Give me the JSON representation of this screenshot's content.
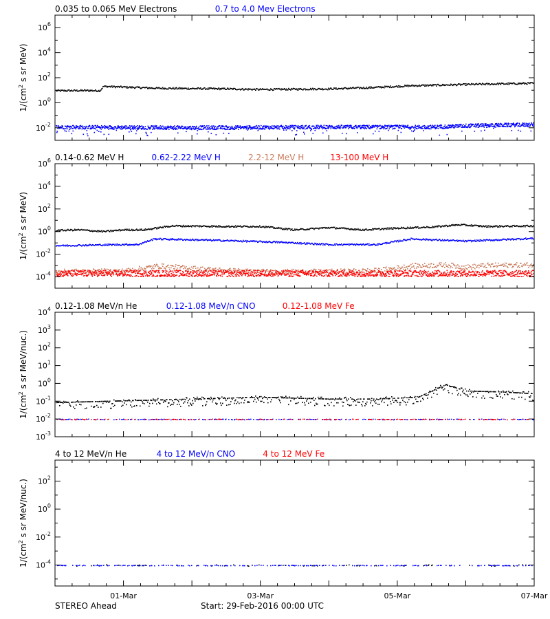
{
  "colors": {
    "black": "#000000",
    "blue": "#0000ff",
    "tan": "#c87a5a",
    "red": "#ff0000"
  },
  "chart_data": [
    {
      "type": "scatter",
      "ylog": true,
      "ylim_exp": [
        -3,
        7
      ],
      "ylabel": {
        "pre": "1/(cm",
        "sup": "2",
        "post": " s sr MeV)"
      },
      "legend": [
        {
          "name": "0.035 to 0.065 MeV Electrons",
          "color": "#000000"
        },
        {
          "name": "0.7 to 4.0 Mev Electrons",
          "color": "#0000ff"
        }
      ],
      "yticks": [
        {
          "b": "10",
          "e": "6",
          "v": 6
        },
        {
          "b": "10",
          "e": "4",
          "v": 4
        },
        {
          "b": "10",
          "e": "2",
          "v": 2
        },
        {
          "b": "10",
          "e": "0",
          "v": 0
        },
        {
          "b": "10",
          "e": "-2",
          "v": -2
        }
      ],
      "series": [
        {
          "name": "0.035 to 0.065 MeV Electrons",
          "color": "#000000",
          "scatter": 0.07,
          "density": 1,
          "x": [
            0,
            0.5,
            0.65,
            0.7,
            1.5,
            2.5,
            3.0,
            4.0,
            4.6,
            5.2,
            6.0,
            7.0
          ],
          "y": [
            1.0,
            1.02,
            1.0,
            1.35,
            1.2,
            1.15,
            1.1,
            1.15,
            1.25,
            1.4,
            1.5,
            1.6
          ]
        },
        {
          "name": "0.7 to 4.0 Mev Electrons",
          "color": "#0000ff",
          "scatter": 0.15,
          "density": 2,
          "tail": 0.6,
          "x": [
            0,
            2.0,
            4.0,
            5.5,
            6.0,
            7.0
          ],
          "y": [
            -1.9,
            -1.95,
            -1.9,
            -1.9,
            -1.8,
            -1.7
          ]
        }
      ]
    },
    {
      "type": "scatter",
      "ylog": true,
      "ylim_exp": [
        -5,
        6
      ],
      "ylabel": {
        "pre": "1/(cm",
        "sup": "2",
        "post": " s sr MeV)"
      },
      "legend": [
        {
          "name": "0.14-0.62 MeV H",
          "color": "#000000"
        },
        {
          "name": "0.62-2.22 MeV H",
          "color": "#0000ff"
        },
        {
          "name": "2.2-12 MeV H",
          "color": "#c87a5a"
        },
        {
          "name": "13-100 MeV H",
          "color": "#ff0000"
        }
      ],
      "yticks": [
        {
          "b": "10",
          "e": "6",
          "v": 6
        },
        {
          "b": "10",
          "e": "4",
          "v": 4
        },
        {
          "b": "10",
          "e": "2",
          "v": 2
        },
        {
          "b": "10",
          "e": "0",
          "v": 0
        },
        {
          "b": "10",
          "e": "-2",
          "v": -2
        },
        {
          "b": "10",
          "e": "-4",
          "v": -4
        }
      ],
      "series": [
        {
          "name": "0.14-0.62 MeV H",
          "color": "#000000",
          "scatter": 0.07,
          "density": 1,
          "x": [
            0,
            0.35,
            0.7,
            1.0,
            1.3,
            1.7,
            2.5,
            3.0,
            3.5,
            4.0,
            4.5,
            5.0,
            5.5,
            5.9,
            6.3,
            7.0
          ],
          "y": [
            0.15,
            0.2,
            0.05,
            0.2,
            0.2,
            0.55,
            0.5,
            0.5,
            0.2,
            0.4,
            0.2,
            0.35,
            0.45,
            0.65,
            0.5,
            0.55
          ]
        },
        {
          "name": "0.62-2.22 MeV H",
          "color": "#0000ff",
          "scatter": 0.07,
          "density": 1,
          "x": [
            0,
            1.0,
            1.2,
            1.45,
            2.5,
            3.3,
            4.0,
            4.7,
            5.2,
            6.0,
            7.0
          ],
          "y": [
            -1.2,
            -1.1,
            -1.1,
            -0.6,
            -0.75,
            -0.9,
            -1.1,
            -1.1,
            -0.6,
            -0.8,
            -0.55
          ]
        },
        {
          "name": "2.2-12 MeV H",
          "color": "#c87a5a",
          "scatter": 0.22,
          "density": 1,
          "x": [
            0,
            1.0,
            1.5,
            2.0,
            2.5,
            3.0,
            4.0,
            4.7,
            5.2,
            5.7,
            6.0,
            6.3,
            7.0
          ],
          "y": [
            -3.5,
            -3.45,
            -3.0,
            -3.2,
            -3.4,
            -3.5,
            -3.5,
            -3.4,
            -3.0,
            -2.9,
            -3.1,
            -2.95,
            -2.9
          ]
        },
        {
          "name": "13-100 MeV H",
          "color": "#ff0000",
          "scatter": 0.28,
          "density": 2,
          "x": [
            0,
            7.0
          ],
          "y": [
            -3.65,
            -3.65
          ]
        }
      ]
    },
    {
      "type": "scatter",
      "ylog": true,
      "ylim_exp": [
        -3,
        4
      ],
      "ylabel": {
        "pre": "1/(cm",
        "sup": "2",
        "post": " s sr MeV/nuc.)"
      },
      "legend": [
        {
          "name": "0.12-1.08 MeV/n He",
          "color": "#000000"
        },
        {
          "name": "0.12-1.08 MeV/n CNO",
          "color": "#0000ff"
        },
        {
          "name": "0.12-1.08 MeV Fe",
          "color": "#ff0000"
        }
      ],
      "yticks": [
        {
          "b": "10",
          "e": "4",
          "v": 4
        },
        {
          "b": "10",
          "e": "3",
          "v": 3
        },
        {
          "b": "10",
          "e": "2",
          "v": 2
        },
        {
          "b": "10",
          "e": "1",
          "v": 1
        },
        {
          "b": "10",
          "e": "0",
          "v": 0
        },
        {
          "b": "10",
          "e": "-1",
          "v": -1
        },
        {
          "b": "10",
          "e": "-2",
          "v": -2
        },
        {
          "b": "10",
          "e": "-3",
          "v": -3
        }
      ],
      "series": [
        {
          "name": "0.12-1.08 MeV/n He",
          "color": "#000000",
          "scatter": 0.25,
          "density": 1,
          "gapy": true,
          "x": [
            0,
            1.0,
            2.0,
            3.0,
            4.0,
            4.7,
            5.3,
            5.7,
            6.0,
            6.5,
            7.0
          ],
          "y": [
            -1.2,
            -1.1,
            -1.0,
            -0.9,
            -1.0,
            -1.0,
            -0.9,
            -0.2,
            -0.55,
            -0.6,
            -0.7
          ]
        },
        {
          "name": "0.12-1.08 MeV/n CNO",
          "color": "#0000ff",
          "scatter": 0.02,
          "density": 1,
          "sparse": 0.35,
          "x": [
            0,
            7.0
          ],
          "y": [
            -2.0,
            -2.0
          ]
        },
        {
          "name": "0.12-1.08 MeV Fe",
          "color": "#ff0000",
          "scatter": 0.02,
          "density": 1,
          "sparse": 0.25,
          "x": [
            0,
            7.0
          ],
          "y": [
            -2.0,
            -2.0
          ]
        }
      ]
    },
    {
      "type": "scatter",
      "ylog": true,
      "ylim_exp": [
        -5.5,
        3.5
      ],
      "ylabel": {
        "pre": "1/(cm",
        "sup": "2",
        "post": " s sr MeV/nuc.)"
      },
      "legend": [
        {
          "name": "4 to 12 MeV/n He",
          "color": "#000000"
        },
        {
          "name": "4 to 12 MeV/n CNO",
          "color": "#0000ff"
        },
        {
          "name": "4 to 12 MeV Fe",
          "color": "#ff0000"
        }
      ],
      "yticks": [
        {
          "b": "10",
          "e": "2",
          "v": 2
        },
        {
          "b": "10",
          "e": "0",
          "v": 0
        },
        {
          "b": "10",
          "e": "-2",
          "v": -2
        },
        {
          "b": "10",
          "e": "-4",
          "v": -4
        }
      ],
      "series": [
        {
          "name": "4 to 12 MeV/n He",
          "color": "#000000",
          "scatter": 0.05,
          "density": 1,
          "sparse": 0.1,
          "x": [
            0,
            7.0
          ],
          "y": [
            -4.0,
            -4.0
          ]
        },
        {
          "name": "4 to 12 MeV/n CNO",
          "color": "#0000ff",
          "scatter": 0.02,
          "density": 1,
          "sparse": 0.3,
          "x": [
            0,
            7.0
          ],
          "y": [
            -4.0,
            -4.0
          ]
        }
      ]
    }
  ],
  "x_axis": {
    "ticks": [
      {
        "label": "01-Mar",
        "x": 1
      },
      {
        "label": "03-Mar",
        "x": 3
      },
      {
        "label": "05-Mar",
        "x": 5
      },
      {
        "label": "07-Mar",
        "x": 7
      }
    ],
    "xlim": [
      0,
      7
    ]
  },
  "footer": {
    "left": "STEREO Ahead",
    "center": "Start: 29-Feb-2016 00:00 UTC"
  }
}
